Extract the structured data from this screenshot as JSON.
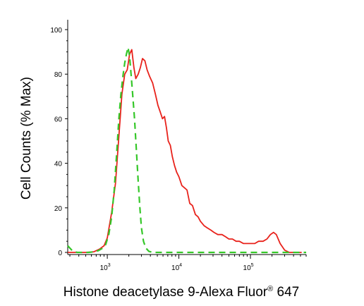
{
  "chart_data": {
    "type": "line",
    "title": "",
    "xlabel": "Histone deacetylase 9-Alexa Fluor",
    "xlabel_mark": "®",
    "xlabel_suffix": " 647",
    "ylabel": "Cell Counts (% Max)",
    "x_scale": "log",
    "xlim": [
      280,
      600000
    ],
    "ylim": [
      0,
      100
    ],
    "x_ticks": [
      {
        "value": 1000,
        "base": "10",
        "exp": "3"
      },
      {
        "value": 10000,
        "base": "10",
        "exp": "4"
      },
      {
        "value": 100000,
        "base": "10",
        "exp": "5"
      }
    ],
    "y_ticks": [
      0,
      20,
      40,
      60,
      80,
      100
    ],
    "grid": false,
    "series": [
      {
        "color": "#e8221b",
        "dash": "solid",
        "x": [
          280,
          380,
          500,
          650,
          780,
          900,
          1000,
          1150,
          1300,
          1450,
          1600,
          1750,
          1900,
          2050,
          2200,
          2350,
          2500,
          2700,
          2900,
          3100,
          3350,
          3600,
          3900,
          4300,
          4700,
          5100,
          5500,
          5900,
          6300,
          6700,
          7100,
          7600,
          8100,
          8700,
          9300,
          10000,
          11000,
          12000,
          13000,
          14200,
          15500,
          17000,
          18500,
          20000,
          22500,
          25000,
          28000,
          31000,
          35000,
          40000,
          45000,
          50000,
          56000,
          63000,
          70000,
          80000,
          90000,
          100000,
          115000,
          130000,
          150000,
          170000,
          190000,
          210000,
          230000,
          260000,
          300000,
          350000,
          420000,
          520000
        ],
        "y": [
          0,
          0,
          0,
          0.3,
          1.5,
          3,
          6.5,
          18,
          31,
          52,
          71,
          80,
          82,
          89,
          91,
          83,
          78,
          80,
          83,
          87,
          86,
          82,
          79,
          76,
          71,
          66,
          63,
          60,
          61,
          56,
          50,
          48,
          43,
          39,
          36,
          34,
          30,
          29,
          28,
          22,
          21,
          17,
          16,
          14,
          12,
          11,
          10,
          9,
          8,
          8,
          7,
          6,
          6,
          5,
          5,
          4,
          4,
          4,
          4,
          5,
          5,
          6,
          8,
          9,
          8,
          4,
          1,
          0,
          0,
          0
        ]
      },
      {
        "color": "#35c729",
        "dash": "dashed",
        "x": [
          280,
          330,
          380,
          450,
          550,
          650,
          750,
          850,
          950,
          1050,
          1150,
          1250,
          1350,
          1450,
          1550,
          1650,
          1750,
          1850,
          1950,
          2050,
          2150,
          2250,
          2400,
          2550,
          2700,
          2850,
          3000,
          3200,
          3450,
          3800,
          4300,
          5000,
          7000,
          10000,
          30000,
          100000,
          300000,
          600000
        ],
        "y": [
          3,
          0.5,
          0,
          0,
          0,
          0.3,
          0.8,
          1.8,
          3.5,
          8,
          16,
          28,
          44,
          60,
          71,
          79,
          85,
          89,
          92,
          88,
          80,
          72,
          60,
          46,
          32,
          20,
          11,
          5,
          2,
          0.5,
          0,
          0,
          0,
          0,
          0,
          0,
          0,
          0
        ]
      }
    ]
  }
}
